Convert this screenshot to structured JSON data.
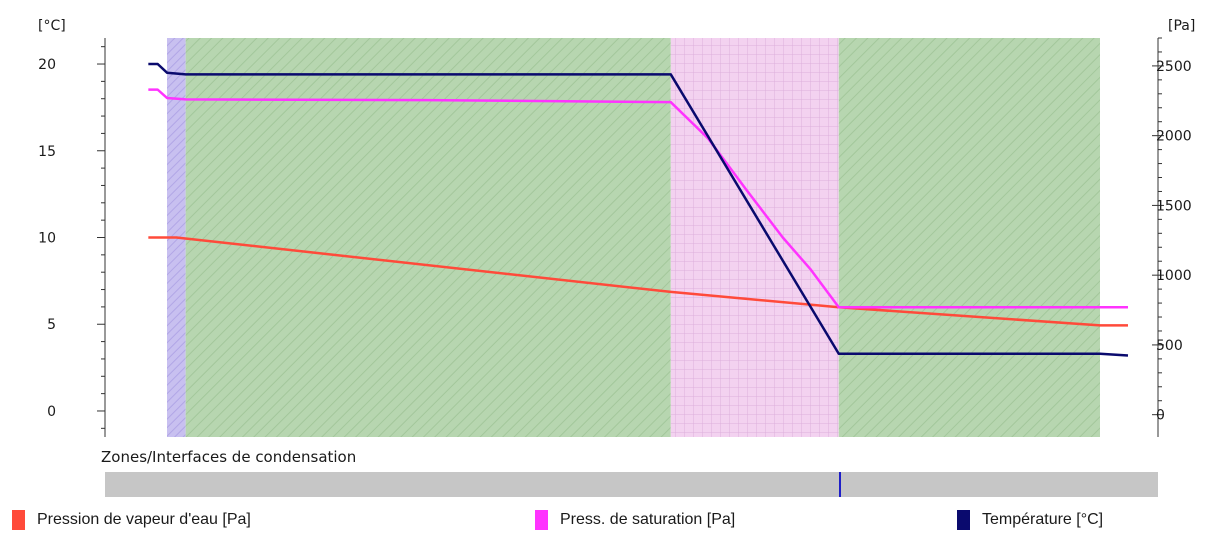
{
  "chart_data": {
    "type": "line",
    "left_axis": {
      "unit_label": "[°C]",
      "ylim": [
        -1.5,
        21.5
      ],
      "ticks": [
        0,
        5,
        10,
        15,
        20
      ]
    },
    "right_axis": {
      "unit_label": "[Pa]",
      "ylim": [
        -160,
        2700
      ],
      "ticks": [
        0,
        500,
        1000,
        1500,
        2000,
        2500
      ]
    },
    "x_range": [
      0,
      1
    ],
    "layers": [
      {
        "start": 0.0,
        "end": 0.02,
        "pattern": "purple-hatch",
        "color": "#c8c0f0"
      },
      {
        "start": 0.02,
        "end": 0.54,
        "pattern": "green-hatch",
        "color": "#b7d6b0"
      },
      {
        "start": 0.54,
        "end": 0.72,
        "pattern": "pink-grid",
        "color": "#f3d2f0"
      },
      {
        "start": 0.72,
        "end": 1.0,
        "pattern": "green-hatch",
        "color": "#b7d6b0"
      }
    ],
    "series": [
      {
        "name": "Température [°C]",
        "color": "#0a0a6e",
        "axis": "left",
        "x": [
          -0.02,
          -0.01,
          0.0,
          0.02,
          0.54,
          0.72,
          1.0,
          1.03
        ],
        "y": [
          20.0,
          20.0,
          19.5,
          19.4,
          19.4,
          3.3,
          3.3,
          3.2
        ]
      },
      {
        "name": "Press. de saturation [Pa]",
        "color": "#ff33ff",
        "axis": "right",
        "x": [
          -0.02,
          -0.01,
          0.0,
          0.02,
          0.28,
          0.54,
          0.58,
          0.62,
          0.66,
          0.69,
          0.72,
          1.0,
          1.03
        ],
        "y": [
          2330,
          2330,
          2270,
          2260,
          2255,
          2240,
          1980,
          1620,
          1270,
          1040,
          770,
          770,
          770
        ]
      },
      {
        "name": "Pression de vapeur d'eau [Pa]",
        "color": "#ff4a3a",
        "axis": "right",
        "x": [
          -0.02,
          0.01,
          0.54,
          0.72,
          1.0,
          1.03
        ],
        "y": [
          1270,
          1270,
          880,
          770,
          640,
          640
        ]
      }
    ]
  },
  "condensation": {
    "label": "Zones/Interfaces de condensation",
    "marker_positions": [
      0.72
    ]
  },
  "legend": [
    {
      "label": "Pression de vapeur d'eau [Pa]",
      "color": "#ff4a3a"
    },
    {
      "label": "Press. de saturation [Pa]",
      "color": "#ff33ff"
    },
    {
      "label": "Température [°C]",
      "color": "#0a0a6e"
    }
  ]
}
